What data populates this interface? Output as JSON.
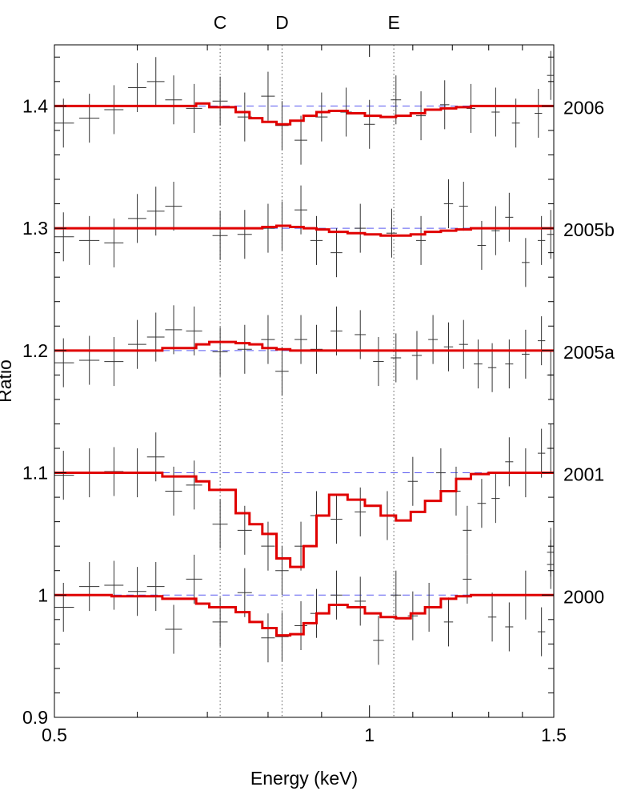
{
  "chart_data": {
    "type": "line",
    "title": "",
    "xlabel": "Energy (keV)",
    "ylabel": "Ratio",
    "xlim": [
      0.5,
      1.5
    ],
    "ylim": [
      0.9,
      1.45
    ],
    "x_scale": "log",
    "x_ticks": [
      0.5,
      1,
      1.5
    ],
    "x_tick_labels": [
      "0.5",
      "1",
      "1.5"
    ],
    "y_ticks": [
      0.9,
      1,
      1.1,
      1.2,
      1.3,
      1.4
    ],
    "y_tick_labels": [
      "0.9",
      "1",
      "1.1",
      "1.2",
      "1.3",
      "1.4"
    ],
    "grid": false,
    "legend": "none",
    "colors": {
      "model": "#e00000",
      "baseline": "#5a5af0",
      "data": "#333333",
      "marker_line": "#555555"
    },
    "line_markers": [
      {
        "label": "C",
        "x": 0.72
      },
      {
        "label": "D",
        "x": 0.825
      },
      {
        "label": "E",
        "x": 1.055
      }
    ],
    "bin_edges": [
      0.5,
      0.567,
      0.634,
      0.683,
      0.703,
      0.745,
      0.768,
      0.79,
      0.815,
      0.84,
      0.865,
      0.89,
      0.915,
      0.953,
      0.99,
      1.025,
      1.06,
      1.095,
      1.13,
      1.17,
      1.21,
      1.25,
      1.3,
      1.5
    ],
    "series": [
      {
        "name": "2006",
        "offset": 1.4,
        "model": [
          1.4,
          1.4,
          1.4,
          1.402,
          1.399,
          1.395,
          1.39,
          1.387,
          1.385,
          1.388,
          1.392,
          1.395,
          1.396,
          1.394,
          1.392,
          1.391,
          1.392,
          1.394,
          1.397,
          1.398,
          1.399,
          1.4,
          1.4
        ],
        "data": [
          {
            "x": 0.51,
            "y": 1.386,
            "xerr": 0.012,
            "yerr": 0.02
          },
          {
            "x": 0.54,
            "y": 1.39,
            "xerr": 0.012,
            "yerr": 0.02
          },
          {
            "x": 0.57,
            "y": 1.397,
            "xerr": 0.012,
            "yerr": 0.02
          },
          {
            "x": 0.6,
            "y": 1.415,
            "xerr": 0.012,
            "yerr": 0.02
          },
          {
            "x": 0.625,
            "y": 1.42,
            "xerr": 0.012,
            "yerr": 0.02
          },
          {
            "x": 0.65,
            "y": 1.405,
            "xerr": 0.012,
            "yerr": 0.02
          },
          {
            "x": 0.68,
            "y": 1.398,
            "xerr": 0.012,
            "yerr": 0.02
          },
          {
            "x": 0.72,
            "y": 1.404,
            "xerr": 0.012,
            "yerr": 0.02
          },
          {
            "x": 0.76,
            "y": 1.391,
            "xerr": 0.012,
            "yerr": 0.02
          },
          {
            "x": 0.8,
            "y": 1.408,
            "xerr": 0.012,
            "yerr": 0.02
          },
          {
            "x": 0.825,
            "y": 1.384,
            "xerr": 0.012,
            "yerr": 0.02
          },
          {
            "x": 0.86,
            "y": 1.372,
            "xerr": 0.012,
            "yerr": 0.02
          },
          {
            "x": 0.9,
            "y": 1.391,
            "xerr": 0.012,
            "yerr": 0.02
          },
          {
            "x": 0.95,
            "y": 1.395,
            "xerr": 0.012,
            "yerr": 0.02
          },
          {
            "x": 1.0,
            "y": 1.385,
            "xerr": 0.012,
            "yerr": 0.02
          },
          {
            "x": 1.06,
            "y": 1.405,
            "xerr": 0.012,
            "yerr": 0.02
          },
          {
            "x": 1.12,
            "y": 1.392,
            "xerr": 0.012,
            "yerr": 0.02
          },
          {
            "x": 1.18,
            "y": 1.401,
            "xerr": 0.012,
            "yerr": 0.02
          },
          {
            "x": 1.25,
            "y": 1.398,
            "xerr": 0.012,
            "yerr": 0.02
          },
          {
            "x": 1.32,
            "y": 1.395,
            "xerr": 0.012,
            "yerr": 0.02
          },
          {
            "x": 1.38,
            "y": 1.386,
            "xerr": 0.012,
            "yerr": 0.02
          },
          {
            "x": 1.45,
            "y": 1.394,
            "xerr": 0.012,
            "yerr": 0.02
          },
          {
            "x": 1.49,
            "y": 1.425,
            "xerr": 0.012,
            "yerr": 0.02
          }
        ]
      },
      {
        "name": "2005b",
        "offset": 1.3,
        "model": [
          1.3,
          1.3,
          1.3,
          1.3,
          1.3,
          1.3,
          1.3,
          1.301,
          1.302,
          1.301,
          1.3,
          1.299,
          1.297,
          1.296,
          1.295,
          1.294,
          1.294,
          1.295,
          1.297,
          1.298,
          1.299,
          1.3,
          1.3
        ],
        "data": [
          {
            "x": 0.51,
            "y": 1.293,
            "xerr": 0.012,
            "yerr": 0.02
          },
          {
            "x": 0.54,
            "y": 1.29,
            "xerr": 0.012,
            "yerr": 0.02
          },
          {
            "x": 0.57,
            "y": 1.288,
            "xerr": 0.012,
            "yerr": 0.02
          },
          {
            "x": 0.6,
            "y": 1.308,
            "xerr": 0.012,
            "yerr": 0.02
          },
          {
            "x": 0.625,
            "y": 1.314,
            "xerr": 0.012,
            "yerr": 0.02
          },
          {
            "x": 0.65,
            "y": 1.318,
            "xerr": 0.012,
            "yerr": 0.02
          },
          {
            "x": 0.72,
            "y": 1.294,
            "xerr": 0.012,
            "yerr": 0.02
          },
          {
            "x": 0.76,
            "y": 1.295,
            "xerr": 0.012,
            "yerr": 0.02
          },
          {
            "x": 0.8,
            "y": 1.3,
            "xerr": 0.012,
            "yerr": 0.02
          },
          {
            "x": 0.825,
            "y": 1.302,
            "xerr": 0.012,
            "yerr": 0.02
          },
          {
            "x": 0.86,
            "y": 1.315,
            "xerr": 0.012,
            "yerr": 0.02
          },
          {
            "x": 0.89,
            "y": 1.29,
            "xerr": 0.012,
            "yerr": 0.02
          },
          {
            "x": 0.93,
            "y": 1.28,
            "xerr": 0.012,
            "yerr": 0.02
          },
          {
            "x": 0.98,
            "y": 1.3,
            "xerr": 0.012,
            "yerr": 0.02
          },
          {
            "x": 1.05,
            "y": 1.296,
            "xerr": 0.012,
            "yerr": 0.02
          },
          {
            "x": 1.12,
            "y": 1.29,
            "xerr": 0.012,
            "yerr": 0.02
          },
          {
            "x": 1.19,
            "y": 1.32,
            "xerr": 0.012,
            "yerr": 0.02
          },
          {
            "x": 1.23,
            "y": 1.318,
            "xerr": 0.012,
            "yerr": 0.02
          },
          {
            "x": 1.28,
            "y": 1.286,
            "xerr": 0.012,
            "yerr": 0.02
          },
          {
            "x": 1.32,
            "y": 1.298,
            "xerr": 0.012,
            "yerr": 0.02
          },
          {
            "x": 1.36,
            "y": 1.309,
            "xerr": 0.012,
            "yerr": 0.02
          },
          {
            "x": 1.41,
            "y": 1.272,
            "xerr": 0.012,
            "yerr": 0.02
          },
          {
            "x": 1.46,
            "y": 1.29,
            "xerr": 0.012,
            "yerr": 0.02
          },
          {
            "x": 1.49,
            "y": 1.295,
            "xerr": 0.012,
            "yerr": 0.02
          }
        ]
      },
      {
        "name": "2005a",
        "offset": 1.2,
        "model": [
          1.2,
          1.2,
          1.202,
          1.205,
          1.207,
          1.206,
          1.205,
          1.202,
          1.201,
          1.2,
          1.2,
          1.2,
          1.2,
          1.2,
          1.2,
          1.2,
          1.2,
          1.2,
          1.2,
          1.2,
          1.2,
          1.2,
          1.2
        ],
        "data": [
          {
            "x": 0.51,
            "y": 1.19,
            "xerr": 0.012,
            "yerr": 0.02
          },
          {
            "x": 0.54,
            "y": 1.192,
            "xerr": 0.012,
            "yerr": 0.02
          },
          {
            "x": 0.57,
            "y": 1.191,
            "xerr": 0.012,
            "yerr": 0.02
          },
          {
            "x": 0.6,
            "y": 1.205,
            "xerr": 0.012,
            "yerr": 0.02
          },
          {
            "x": 0.625,
            "y": 1.211,
            "xerr": 0.012,
            "yerr": 0.02
          },
          {
            "x": 0.65,
            "y": 1.217,
            "xerr": 0.012,
            "yerr": 0.02
          },
          {
            "x": 0.68,
            "y": 1.216,
            "xerr": 0.012,
            "yerr": 0.02
          },
          {
            "x": 0.72,
            "y": 1.199,
            "xerr": 0.012,
            "yerr": 0.02
          },
          {
            "x": 0.76,
            "y": 1.201,
            "xerr": 0.012,
            "yerr": 0.02
          },
          {
            "x": 0.8,
            "y": 1.209,
            "xerr": 0.012,
            "yerr": 0.02
          },
          {
            "x": 0.825,
            "y": 1.183,
            "xerr": 0.012,
            "yerr": 0.02
          },
          {
            "x": 0.86,
            "y": 1.209,
            "xerr": 0.012,
            "yerr": 0.02
          },
          {
            "x": 0.89,
            "y": 1.201,
            "xerr": 0.012,
            "yerr": 0.02
          },
          {
            "x": 0.93,
            "y": 1.216,
            "xerr": 0.012,
            "yerr": 0.02
          },
          {
            "x": 0.98,
            "y": 1.213,
            "xerr": 0.012,
            "yerr": 0.02
          },
          {
            "x": 1.02,
            "y": 1.191,
            "xerr": 0.012,
            "yerr": 0.02
          },
          {
            "x": 1.06,
            "y": 1.194,
            "xerr": 0.012,
            "yerr": 0.02
          },
          {
            "x": 1.11,
            "y": 1.196,
            "xerr": 0.012,
            "yerr": 0.02
          },
          {
            "x": 1.15,
            "y": 1.209,
            "xerr": 0.012,
            "yerr": 0.02
          },
          {
            "x": 1.19,
            "y": 1.203,
            "xerr": 0.012,
            "yerr": 0.02
          },
          {
            "x": 1.23,
            "y": 1.205,
            "xerr": 0.012,
            "yerr": 0.02
          },
          {
            "x": 1.27,
            "y": 1.189,
            "xerr": 0.012,
            "yerr": 0.02
          },
          {
            "x": 1.31,
            "y": 1.186,
            "xerr": 0.012,
            "yerr": 0.02
          },
          {
            "x": 1.36,
            "y": 1.189,
            "xerr": 0.012,
            "yerr": 0.02
          },
          {
            "x": 1.41,
            "y": 1.197,
            "xerr": 0.012,
            "yerr": 0.02
          },
          {
            "x": 1.46,
            "y": 1.208,
            "xerr": 0.012,
            "yerr": 0.02
          },
          {
            "x": 1.49,
            "y": 1.18,
            "xerr": 0.012,
            "yerr": 0.02
          }
        ]
      },
      {
        "name": "2001",
        "offset": 1.1,
        "model": [
          1.1,
          1.1,
          1.097,
          1.093,
          1.086,
          1.067,
          1.058,
          1.05,
          1.03,
          1.023,
          1.04,
          1.065,
          1.082,
          1.078,
          1.073,
          1.065,
          1.061,
          1.068,
          1.077,
          1.085,
          1.095,
          1.099,
          1.1
        ],
        "data": [
          {
            "x": 0.51,
            "y": 1.098,
            "xerr": 0.012,
            "yerr": 0.02
          },
          {
            "x": 0.54,
            "y": 1.1,
            "xerr": 0.012,
            "yerr": 0.02
          },
          {
            "x": 0.57,
            "y": 1.101,
            "xerr": 0.012,
            "yerr": 0.02
          },
          {
            "x": 0.6,
            "y": 1.1,
            "xerr": 0.012,
            "yerr": 0.02
          },
          {
            "x": 0.625,
            "y": 1.113,
            "xerr": 0.012,
            "yerr": 0.02
          },
          {
            "x": 0.65,
            "y": 1.085,
            "xerr": 0.012,
            "yerr": 0.02
          },
          {
            "x": 0.68,
            "y": 1.09,
            "xerr": 0.012,
            "yerr": 0.02
          },
          {
            "x": 0.72,
            "y": 1.058,
            "xerr": 0.012,
            "yerr": 0.02
          },
          {
            "x": 0.76,
            "y": 1.053,
            "xerr": 0.012,
            "yerr": 0.02
          },
          {
            "x": 0.8,
            "y": 1.04,
            "xerr": 0.012,
            "yerr": 0.02
          },
          {
            "x": 0.825,
            "y": 1.02,
            "xerr": 0.012,
            "yerr": 0.02
          },
          {
            "x": 0.86,
            "y": 1.04,
            "xerr": 0.012,
            "yerr": 0.02
          },
          {
            "x": 0.89,
            "y": 1.065,
            "xerr": 0.012,
            "yerr": 0.02
          },
          {
            "x": 0.93,
            "y": 1.062,
            "xerr": 0.012,
            "yerr": 0.02
          },
          {
            "x": 0.98,
            "y": 1.068,
            "xerr": 0.012,
            "yerr": 0.02
          },
          {
            "x": 1.04,
            "y": 1.065,
            "xerr": 0.012,
            "yerr": 0.02
          },
          {
            "x": 1.1,
            "y": 1.093,
            "xerr": 0.012,
            "yerr": 0.02
          },
          {
            "x": 1.17,
            "y": 1.1,
            "xerr": 0.012,
            "yerr": 0.02
          },
          {
            "x": 1.21,
            "y": 1.085,
            "xerr": 0.012,
            "yerr": 0.02
          },
          {
            "x": 1.24,
            "y": 1.053,
            "xerr": 0.012,
            "yerr": 0.02
          },
          {
            "x": 1.28,
            "y": 1.075,
            "xerr": 0.012,
            "yerr": 0.02
          },
          {
            "x": 1.32,
            "y": 1.079,
            "xerr": 0.012,
            "yerr": 0.02
          },
          {
            "x": 1.36,
            "y": 1.109,
            "xerr": 0.012,
            "yerr": 0.02
          },
          {
            "x": 1.41,
            "y": 1.1,
            "xerr": 0.012,
            "yerr": 0.02
          },
          {
            "x": 1.46,
            "y": 1.116,
            "xerr": 0.012,
            "yerr": 0.02
          },
          {
            "x": 1.49,
            "y": 1.12,
            "xerr": 0.012,
            "yerr": 0.02
          },
          {
            "x": 1.49,
            "y": 1.035,
            "xerr": 0.012,
            "yerr": 0.02
          }
        ]
      },
      {
        "name": "2000",
        "offset": 1.0,
        "model": [
          1.0,
          0.999,
          0.997,
          0.993,
          0.99,
          0.986,
          0.978,
          0.973,
          0.967,
          0.968,
          0.977,
          0.985,
          0.992,
          0.99,
          0.985,
          0.982,
          0.981,
          0.985,
          0.99,
          0.997,
          0.999,
          1.0,
          1.0
        ],
        "data": [
          {
            "x": 0.51,
            "y": 0.99,
            "xerr": 0.012,
            "yerr": 0.02
          },
          {
            "x": 0.54,
            "y": 1.007,
            "xerr": 0.012,
            "yerr": 0.02
          },
          {
            "x": 0.57,
            "y": 1.008,
            "xerr": 0.012,
            "yerr": 0.02
          },
          {
            "x": 0.6,
            "y": 1.003,
            "xerr": 0.012,
            "yerr": 0.02
          },
          {
            "x": 0.625,
            "y": 1.007,
            "xerr": 0.012,
            "yerr": 0.02
          },
          {
            "x": 0.65,
            "y": 0.972,
            "xerr": 0.012,
            "yerr": 0.02
          },
          {
            "x": 0.68,
            "y": 1.013,
            "xerr": 0.012,
            "yerr": 0.02
          },
          {
            "x": 0.72,
            "y": 0.978,
            "xerr": 0.012,
            "yerr": 0.02
          },
          {
            "x": 0.76,
            "y": 1.002,
            "xerr": 0.012,
            "yerr": 0.02
          },
          {
            "x": 0.8,
            "y": 0.965,
            "xerr": 0.012,
            "yerr": 0.02
          },
          {
            "x": 0.825,
            "y": 0.966,
            "xerr": 0.012,
            "yerr": 0.02
          },
          {
            "x": 0.86,
            "y": 0.975,
            "xerr": 0.012,
            "yerr": 0.02
          },
          {
            "x": 0.89,
            "y": 0.985,
            "xerr": 0.012,
            "yerr": 0.02
          },
          {
            "x": 0.93,
            "y": 1.0,
            "xerr": 0.012,
            "yerr": 0.02
          },
          {
            "x": 0.98,
            "y": 0.995,
            "xerr": 0.012,
            "yerr": 0.02
          },
          {
            "x": 1.02,
            "y": 0.963,
            "xerr": 0.012,
            "yerr": 0.02
          },
          {
            "x": 1.06,
            "y": 1.0,
            "xerr": 0.012,
            "yerr": 0.02
          },
          {
            "x": 1.1,
            "y": 0.983,
            "xerr": 0.012,
            "yerr": 0.02
          },
          {
            "x": 1.14,
            "y": 0.99,
            "xerr": 0.012,
            "yerr": 0.02
          },
          {
            "x": 1.19,
            "y": 0.978,
            "xerr": 0.012,
            "yerr": 0.02
          },
          {
            "x": 1.24,
            "y": 1.013,
            "xerr": 0.012,
            "yerr": 0.02
          },
          {
            "x": 1.31,
            "y": 0.982,
            "xerr": 0.012,
            "yerr": 0.02
          },
          {
            "x": 1.36,
            "y": 0.974,
            "xerr": 0.012,
            "yerr": 0.02
          },
          {
            "x": 1.41,
            "y": 1.0,
            "xerr": 0.012,
            "yerr": 0.02
          },
          {
            "x": 1.46,
            "y": 0.97,
            "xerr": 0.012,
            "yerr": 0.02
          },
          {
            "x": 1.49,
            "y": 1.025,
            "xerr": 0.012,
            "yerr": 0.02
          }
        ]
      }
    ]
  }
}
